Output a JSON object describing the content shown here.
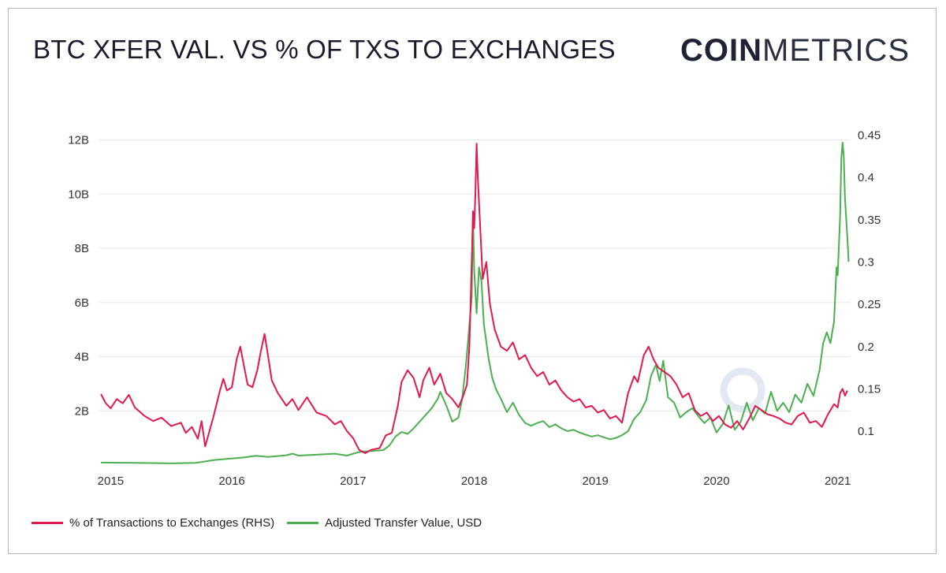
{
  "title": "BTC XFER VAL. VS % OF TXS TO EXCHANGES",
  "logo": {
    "bold": "COIN",
    "light": "METRICS"
  },
  "colors": {
    "exchanges": "#e0194f",
    "transfer": "#4caf50",
    "grid": "#e8e8e8"
  },
  "legend": [
    {
      "label": "% of Transactions to Exchanges (RHS)",
      "color": "#e0194f"
    },
    {
      "label": "Adjusted Transfer Value, USD",
      "color": "#4caf50"
    }
  ],
  "chart_data": {
    "type": "line",
    "title": "BTC XFER VAL. VS % OF TXS TO EXCHANGES",
    "x_axis": {
      "range": [
        2014.9,
        2021.1
      ],
      "ticks": [
        "2015",
        "2016",
        "2017",
        "2018",
        "2019",
        "2020",
        "2021"
      ]
    },
    "y_left": {
      "range": [
        0,
        12.8
      ],
      "unit": "B USD",
      "ticks": [
        "2B",
        "4B",
        "6B",
        "8B",
        "10B",
        "12B"
      ]
    },
    "y_right": {
      "range": [
        0.06,
        0.47
      ],
      "ticks": [
        "0.1",
        "0.15",
        "0.2",
        "0.25",
        "0.3",
        "0.35",
        "0.4",
        "0.45"
      ]
    },
    "series": [
      {
        "name": "% of Transactions to Exchanges (RHS)",
        "axis": "right",
        "points": [
          [
            2014.92,
            0.144
          ],
          [
            2014.96,
            0.133
          ],
          [
            2015.0,
            0.127
          ],
          [
            2015.05,
            0.138
          ],
          [
            2015.1,
            0.133
          ],
          [
            2015.15,
            0.143
          ],
          [
            2015.2,
            0.128
          ],
          [
            2015.28,
            0.118
          ],
          [
            2015.35,
            0.112
          ],
          [
            2015.42,
            0.116
          ],
          [
            2015.5,
            0.106
          ],
          [
            2015.58,
            0.11
          ],
          [
            2015.62,
            0.098
          ],
          [
            2015.67,
            0.105
          ],
          [
            2015.72,
            0.091
          ],
          [
            2015.75,
            0.112
          ],
          [
            2015.78,
            0.082
          ],
          [
            2015.85,
            0.118
          ],
          [
            2015.9,
            0.147
          ],
          [
            2015.93,
            0.162
          ],
          [
            2015.96,
            0.148
          ],
          [
            2016.0,
            0.152
          ],
          [
            2016.04,
            0.185
          ],
          [
            2016.07,
            0.2
          ],
          [
            2016.1,
            0.177
          ],
          [
            2016.13,
            0.155
          ],
          [
            2016.17,
            0.152
          ],
          [
            2016.21,
            0.172
          ],
          [
            2016.24,
            0.195
          ],
          [
            2016.27,
            0.215
          ],
          [
            2016.3,
            0.188
          ],
          [
            2016.33,
            0.16
          ],
          [
            2016.38,
            0.145
          ],
          [
            2016.45,
            0.13
          ],
          [
            2016.5,
            0.138
          ],
          [
            2016.55,
            0.125
          ],
          [
            2016.62,
            0.14
          ],
          [
            2016.7,
            0.122
          ],
          [
            2016.78,
            0.118
          ],
          [
            2016.85,
            0.108
          ],
          [
            2016.9,
            0.112
          ],
          [
            2016.95,
            0.1
          ],
          [
            2017.0,
            0.092
          ],
          [
            2017.05,
            0.078
          ],
          [
            2017.1,
            0.074
          ],
          [
            2017.15,
            0.078
          ],
          [
            2017.22,
            0.08
          ],
          [
            2017.27,
            0.095
          ],
          [
            2017.32,
            0.098
          ],
          [
            2017.37,
            0.13
          ],
          [
            2017.4,
            0.158
          ],
          [
            2017.45,
            0.172
          ],
          [
            2017.5,
            0.163
          ],
          [
            2017.55,
            0.14
          ],
          [
            2017.58,
            0.16
          ],
          [
            2017.63,
            0.175
          ],
          [
            2017.67,
            0.155
          ],
          [
            2017.72,
            0.168
          ],
          [
            2017.77,
            0.145
          ],
          [
            2017.82,
            0.138
          ],
          [
            2017.87,
            0.128
          ],
          [
            2017.91,
            0.142
          ],
          [
            2017.94,
            0.155
          ],
          [
            2017.96,
            0.2
          ],
          [
            2017.98,
            0.3
          ],
          [
            2017.99,
            0.36
          ],
          [
            2018.0,
            0.34
          ],
          [
            2018.01,
            0.38
          ],
          [
            2018.02,
            0.44
          ],
          [
            2018.03,
            0.4
          ],
          [
            2018.05,
            0.34
          ],
          [
            2018.07,
            0.28
          ],
          [
            2018.1,
            0.3
          ],
          [
            2018.13,
            0.25
          ],
          [
            2018.17,
            0.22
          ],
          [
            2018.22,
            0.2
          ],
          [
            2018.27,
            0.195
          ],
          [
            2018.32,
            0.205
          ],
          [
            2018.37,
            0.185
          ],
          [
            2018.42,
            0.19
          ],
          [
            2018.47,
            0.175
          ],
          [
            2018.52,
            0.165
          ],
          [
            2018.57,
            0.17
          ],
          [
            2018.62,
            0.155
          ],
          [
            2018.67,
            0.16
          ],
          [
            2018.72,
            0.148
          ],
          [
            2018.77,
            0.14
          ],
          [
            2018.82,
            0.135
          ],
          [
            2018.87,
            0.138
          ],
          [
            2018.92,
            0.128
          ],
          [
            2018.97,
            0.13
          ],
          [
            2019.02,
            0.122
          ],
          [
            2019.07,
            0.125
          ],
          [
            2019.12,
            0.115
          ],
          [
            2019.17,
            0.118
          ],
          [
            2019.22,
            0.11
          ],
          [
            2019.27,
            0.145
          ],
          [
            2019.32,
            0.165
          ],
          [
            2019.35,
            0.158
          ],
          [
            2019.4,
            0.19
          ],
          [
            2019.44,
            0.2
          ],
          [
            2019.48,
            0.185
          ],
          [
            2019.52,
            0.175
          ],
          [
            2019.57,
            0.17
          ],
          [
            2019.62,
            0.165
          ],
          [
            2019.67,
            0.155
          ],
          [
            2019.72,
            0.14
          ],
          [
            2019.77,
            0.145
          ],
          [
            2019.82,
            0.125
          ],
          [
            2019.87,
            0.118
          ],
          [
            2019.92,
            0.122
          ],
          [
            2019.97,
            0.112
          ],
          [
            2020.02,
            0.118
          ],
          [
            2020.07,
            0.108
          ],
          [
            2020.12,
            0.104
          ],
          [
            2020.17,
            0.112
          ],
          [
            2020.22,
            0.102
          ],
          [
            2020.27,
            0.115
          ],
          [
            2020.32,
            0.13
          ],
          [
            2020.37,
            0.125
          ],
          [
            2020.42,
            0.12
          ],
          [
            2020.47,
            0.118
          ],
          [
            2020.52,
            0.115
          ],
          [
            2020.57,
            0.11
          ],
          [
            2020.62,
            0.108
          ],
          [
            2020.67,
            0.118
          ],
          [
            2020.72,
            0.122
          ],
          [
            2020.77,
            0.11
          ],
          [
            2020.82,
            0.112
          ],
          [
            2020.87,
            0.105
          ],
          [
            2020.92,
            0.12
          ],
          [
            2020.97,
            0.132
          ],
          [
            2021.0,
            0.128
          ],
          [
            2021.02,
            0.145
          ],
          [
            2021.04,
            0.15
          ],
          [
            2021.06,
            0.142
          ],
          [
            2021.08,
            0.148
          ]
        ]
      },
      {
        "name": "Adjusted Transfer Value, USD",
        "axis": "left",
        "points": [
          [
            2014.92,
            0.09
          ],
          [
            2015.2,
            0.08
          ],
          [
            2015.5,
            0.06
          ],
          [
            2015.7,
            0.08
          ],
          [
            2015.85,
            0.18
          ],
          [
            2015.95,
            0.22
          ],
          [
            2016.1,
            0.28
          ],
          [
            2016.2,
            0.34
          ],
          [
            2016.3,
            0.3
          ],
          [
            2016.45,
            0.36
          ],
          [
            2016.5,
            0.42
          ],
          [
            2016.55,
            0.35
          ],
          [
            2016.7,
            0.38
          ],
          [
            2016.85,
            0.42
          ],
          [
            2016.95,
            0.35
          ],
          [
            2017.05,
            0.48
          ],
          [
            2017.15,
            0.52
          ],
          [
            2017.25,
            0.55
          ],
          [
            2017.3,
            0.72
          ],
          [
            2017.35,
            1.05
          ],
          [
            2017.4,
            1.22
          ],
          [
            2017.45,
            1.15
          ],
          [
            2017.5,
            1.35
          ],
          [
            2017.55,
            1.6
          ],
          [
            2017.6,
            1.85
          ],
          [
            2017.65,
            2.1
          ],
          [
            2017.7,
            2.45
          ],
          [
            2017.72,
            2.7
          ],
          [
            2017.77,
            2.2
          ],
          [
            2017.82,
            1.6
          ],
          [
            2017.87,
            1.75
          ],
          [
            2017.9,
            2.4
          ],
          [
            2017.93,
            3.6
          ],
          [
            2017.95,
            4.6
          ],
          [
            2017.98,
            6.2
          ],
          [
            2017.99,
            9.3
          ],
          [
            2018.0,
            7.2
          ],
          [
            2018.02,
            5.6
          ],
          [
            2018.04,
            7.3
          ],
          [
            2018.06,
            6.8
          ],
          [
            2018.08,
            5.2
          ],
          [
            2018.12,
            3.9
          ],
          [
            2018.15,
            3.2
          ],
          [
            2018.18,
            2.8
          ],
          [
            2018.22,
            2.45
          ],
          [
            2018.27,
            1.95
          ],
          [
            2018.32,
            2.3
          ],
          [
            2018.37,
            1.85
          ],
          [
            2018.42,
            1.55
          ],
          [
            2018.47,
            1.45
          ],
          [
            2018.52,
            1.55
          ],
          [
            2018.57,
            1.62
          ],
          [
            2018.62,
            1.4
          ],
          [
            2018.67,
            1.5
          ],
          [
            2018.72,
            1.35
          ],
          [
            2018.77,
            1.25
          ],
          [
            2018.82,
            1.3
          ],
          [
            2018.87,
            1.2
          ],
          [
            2018.92,
            1.12
          ],
          [
            2018.97,
            1.05
          ],
          [
            2019.02,
            1.1
          ],
          [
            2019.07,
            1.02
          ],
          [
            2019.12,
            0.95
          ],
          [
            2019.17,
            1.0
          ],
          [
            2019.22,
            1.1
          ],
          [
            2019.27,
            1.25
          ],
          [
            2019.32,
            1.7
          ],
          [
            2019.37,
            1.95
          ],
          [
            2019.42,
            2.4
          ],
          [
            2019.46,
            3.3
          ],
          [
            2019.5,
            3.7
          ],
          [
            2019.53,
            3.1
          ],
          [
            2019.56,
            3.85
          ],
          [
            2019.6,
            2.5
          ],
          [
            2019.65,
            2.3
          ],
          [
            2019.7,
            1.75
          ],
          [
            2019.75,
            1.95
          ],
          [
            2019.8,
            2.1
          ],
          [
            2019.85,
            1.8
          ],
          [
            2019.9,
            1.55
          ],
          [
            2019.95,
            1.75
          ],
          [
            2020.0,
            1.2
          ],
          [
            2020.05,
            1.5
          ],
          [
            2020.1,
            2.2
          ],
          [
            2020.15,
            1.3
          ],
          [
            2020.2,
            1.6
          ],
          [
            2020.25,
            2.3
          ],
          [
            2020.3,
            1.65
          ],
          [
            2020.35,
            2.1
          ],
          [
            2020.4,
            1.9
          ],
          [
            2020.45,
            2.7
          ],
          [
            2020.5,
            2.0
          ],
          [
            2020.55,
            2.3
          ],
          [
            2020.6,
            1.95
          ],
          [
            2020.65,
            2.6
          ],
          [
            2020.7,
            2.3
          ],
          [
            2020.75,
            3.0
          ],
          [
            2020.8,
            2.55
          ],
          [
            2020.85,
            3.5
          ],
          [
            2020.88,
            4.5
          ],
          [
            2020.91,
            4.9
          ],
          [
            2020.94,
            4.5
          ],
          [
            2020.97,
            5.3
          ],
          [
            2020.99,
            7.3
          ],
          [
            2021.0,
            7.0
          ],
          [
            2021.02,
            9.2
          ],
          [
            2021.03,
            11.3
          ],
          [
            2021.04,
            11.9
          ],
          [
            2021.05,
            11.4
          ],
          [
            2021.06,
            9.8
          ],
          [
            2021.08,
            8.4
          ],
          [
            2021.09,
            7.5
          ]
        ]
      }
    ]
  }
}
